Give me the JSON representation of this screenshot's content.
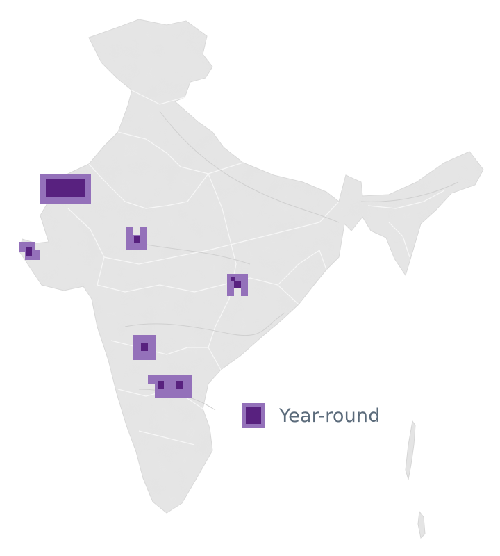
{
  "colors": {
    "land": "#e4e4e4",
    "land_shade": "#d6d6d6",
    "boundary": "#f7f7f7",
    "river": "#cfcfcf",
    "light_fill": "#9471ba",
    "dark_fill": "#58217f",
    "legend_text": "#5b6b7b"
  },
  "legend": {
    "label": "Year-round",
    "swatch_icon": "legend-swatch-icon"
  },
  "map": {
    "regions": [
      {
        "name": "kachchh-west",
        "level": "year-round"
      },
      {
        "name": "gujarat-coast",
        "level": "year-round"
      },
      {
        "name": "madhya-pradesh-west",
        "level": "year-round"
      },
      {
        "name": "chhattisgarh",
        "level": "year-round"
      },
      {
        "name": "maharashtra-south",
        "level": "year-round"
      },
      {
        "name": "karnataka-andhra",
        "level": "year-round"
      }
    ]
  }
}
